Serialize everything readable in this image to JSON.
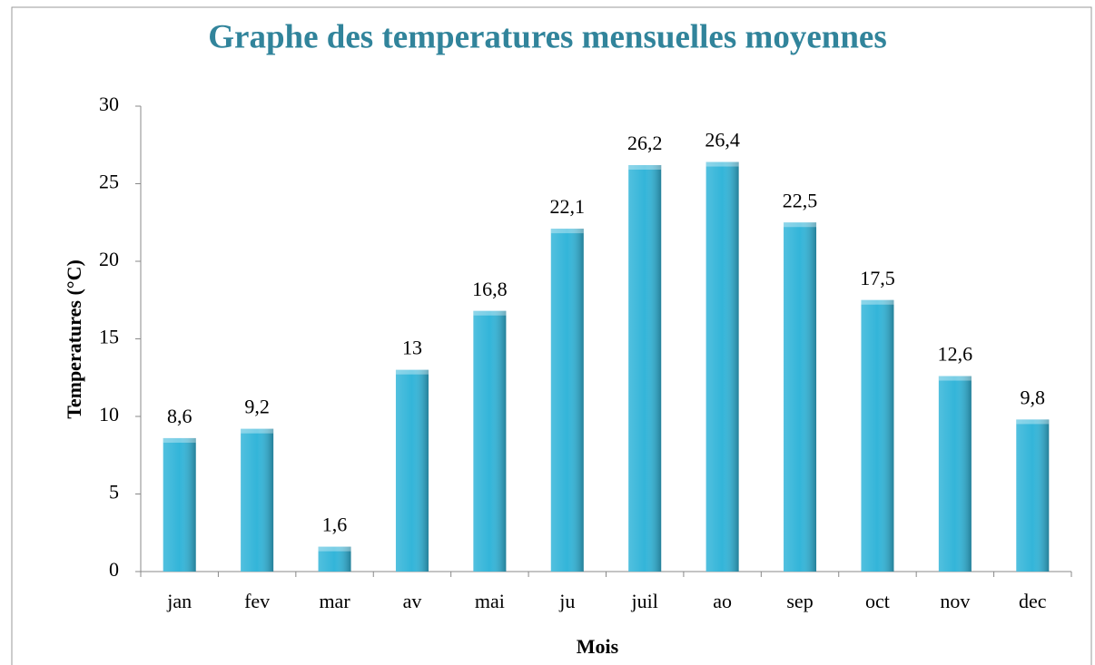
{
  "chart_data": {
    "type": "bar",
    "title": "Graphe des temperatures mensuelles moyennes",
    "x_label": "Mois",
    "y_label": "Temperatures  (°C)",
    "categories": [
      "jan",
      "fev",
      "mar",
      "av",
      "mai",
      "ju",
      "juil",
      "ao",
      "sep",
      "oct",
      "nov",
      "dec"
    ],
    "values": [
      8.6,
      9.2,
      1.6,
      13,
      16.8,
      22.1,
      26.2,
      26.4,
      22.5,
      17.5,
      12.6,
      9.8
    ],
    "value_labels": [
      "8,6",
      "9,2",
      "1,6",
      "13",
      "16,8",
      "22,1",
      "26,2",
      "26,4",
      "22,5",
      "17,5",
      "12,6",
      "9,8"
    ],
    "color": "#33b5d9",
    "ylim": [
      0,
      30
    ],
    "yticks": [
      0,
      5,
      10,
      15,
      20,
      25,
      30
    ],
    "grid": false
  }
}
